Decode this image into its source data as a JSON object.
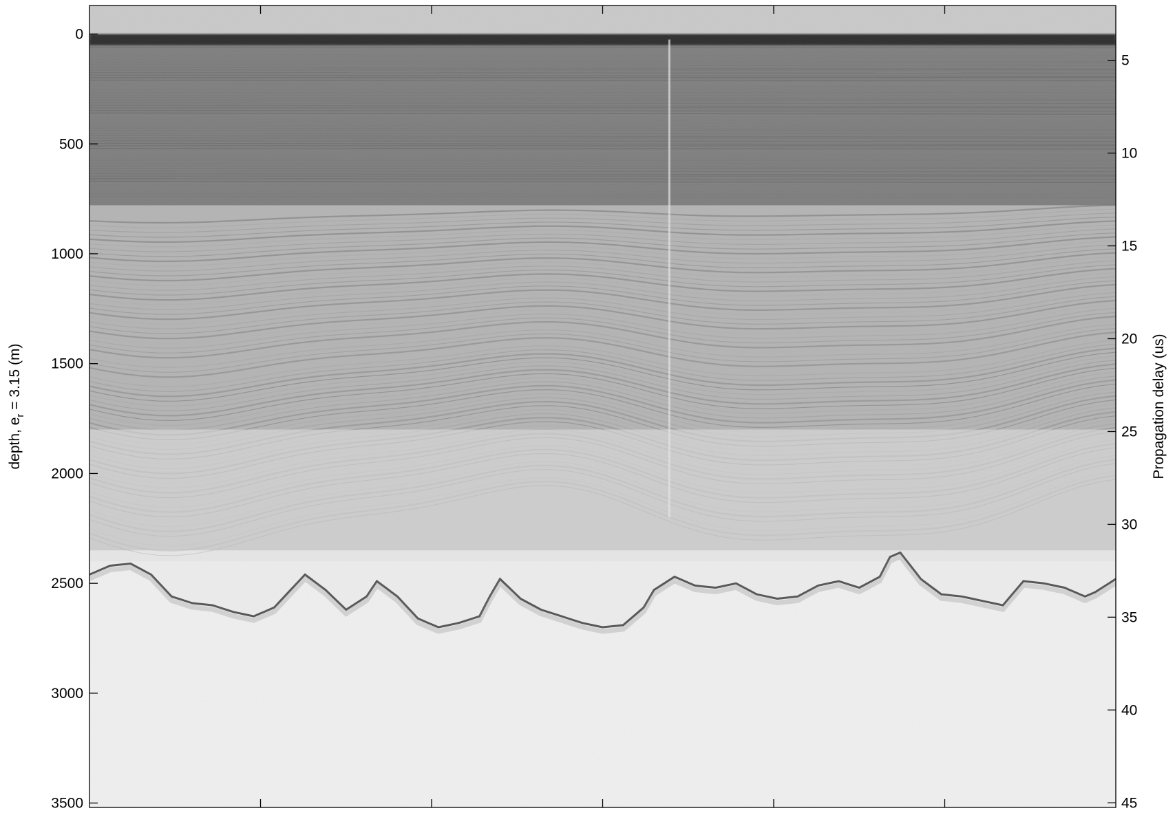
{
  "chart_data": {
    "type": "heatmap",
    "title": "",
    "colormap": "grayscale",
    "left_axis": {
      "label_prefix": "depth, e",
      "label_subscript": "r",
      "label_suffix": " = 3.15 (m)",
      "ticks": [
        "0",
        "500",
        "1000",
        "1500",
        "2000",
        "2500",
        "3000",
        "3500"
      ],
      "tick_values": [
        0,
        500,
        1000,
        1500,
        2000,
        2500,
        3000,
        3500
      ],
      "range": [
        -130,
        3520
      ],
      "reversed": true
    },
    "right_axis": {
      "label": "Propagation delay (us)",
      "ticks": [
        "5",
        "10",
        "15",
        "20",
        "25",
        "30",
        "35",
        "40",
        "45"
      ],
      "tick_values": [
        5,
        10,
        15,
        20,
        25,
        30,
        35,
        40,
        45
      ],
      "range": [
        2.05,
        45.25
      ],
      "reversed": true
    },
    "x_axis": {
      "tick_count": 5,
      "tick_labels": []
    },
    "bands": {
      "surface_depth": 25,
      "layer_boundary_depth": 780,
      "bed_depth_profile": [
        [
          0.0,
          2460
        ],
        [
          0.02,
          2420
        ],
        [
          0.04,
          2410
        ],
        [
          0.06,
          2460
        ],
        [
          0.08,
          2560
        ],
        [
          0.1,
          2590
        ],
        [
          0.12,
          2600
        ],
        [
          0.14,
          2630
        ],
        [
          0.16,
          2650
        ],
        [
          0.18,
          2610
        ],
        [
          0.2,
          2510
        ],
        [
          0.21,
          2460
        ],
        [
          0.23,
          2530
        ],
        [
          0.25,
          2620
        ],
        [
          0.27,
          2560
        ],
        [
          0.28,
          2490
        ],
        [
          0.3,
          2560
        ],
        [
          0.32,
          2660
        ],
        [
          0.34,
          2700
        ],
        [
          0.36,
          2680
        ],
        [
          0.38,
          2650
        ],
        [
          0.39,
          2560
        ],
        [
          0.4,
          2480
        ],
        [
          0.42,
          2570
        ],
        [
          0.44,
          2620
        ],
        [
          0.46,
          2650
        ],
        [
          0.48,
          2680
        ],
        [
          0.5,
          2700
        ],
        [
          0.52,
          2690
        ],
        [
          0.54,
          2610
        ],
        [
          0.55,
          2530
        ],
        [
          0.57,
          2470
        ],
        [
          0.59,
          2510
        ],
        [
          0.61,
          2520
        ],
        [
          0.63,
          2500
        ],
        [
          0.65,
          2550
        ],
        [
          0.67,
          2570
        ],
        [
          0.69,
          2560
        ],
        [
          0.71,
          2510
        ],
        [
          0.73,
          2490
        ],
        [
          0.75,
          2520
        ],
        [
          0.77,
          2470
        ],
        [
          0.78,
          2380
        ],
        [
          0.79,
          2360
        ],
        [
          0.8,
          2420
        ],
        [
          0.81,
          2480
        ],
        [
          0.83,
          2550
        ],
        [
          0.85,
          2560
        ],
        [
          0.87,
          2580
        ],
        [
          0.89,
          2600
        ],
        [
          0.91,
          2490
        ],
        [
          0.93,
          2500
        ],
        [
          0.95,
          2520
        ],
        [
          0.97,
          2560
        ],
        [
          0.98,
          2540
        ],
        [
          1.0,
          2480
        ]
      ]
    }
  }
}
